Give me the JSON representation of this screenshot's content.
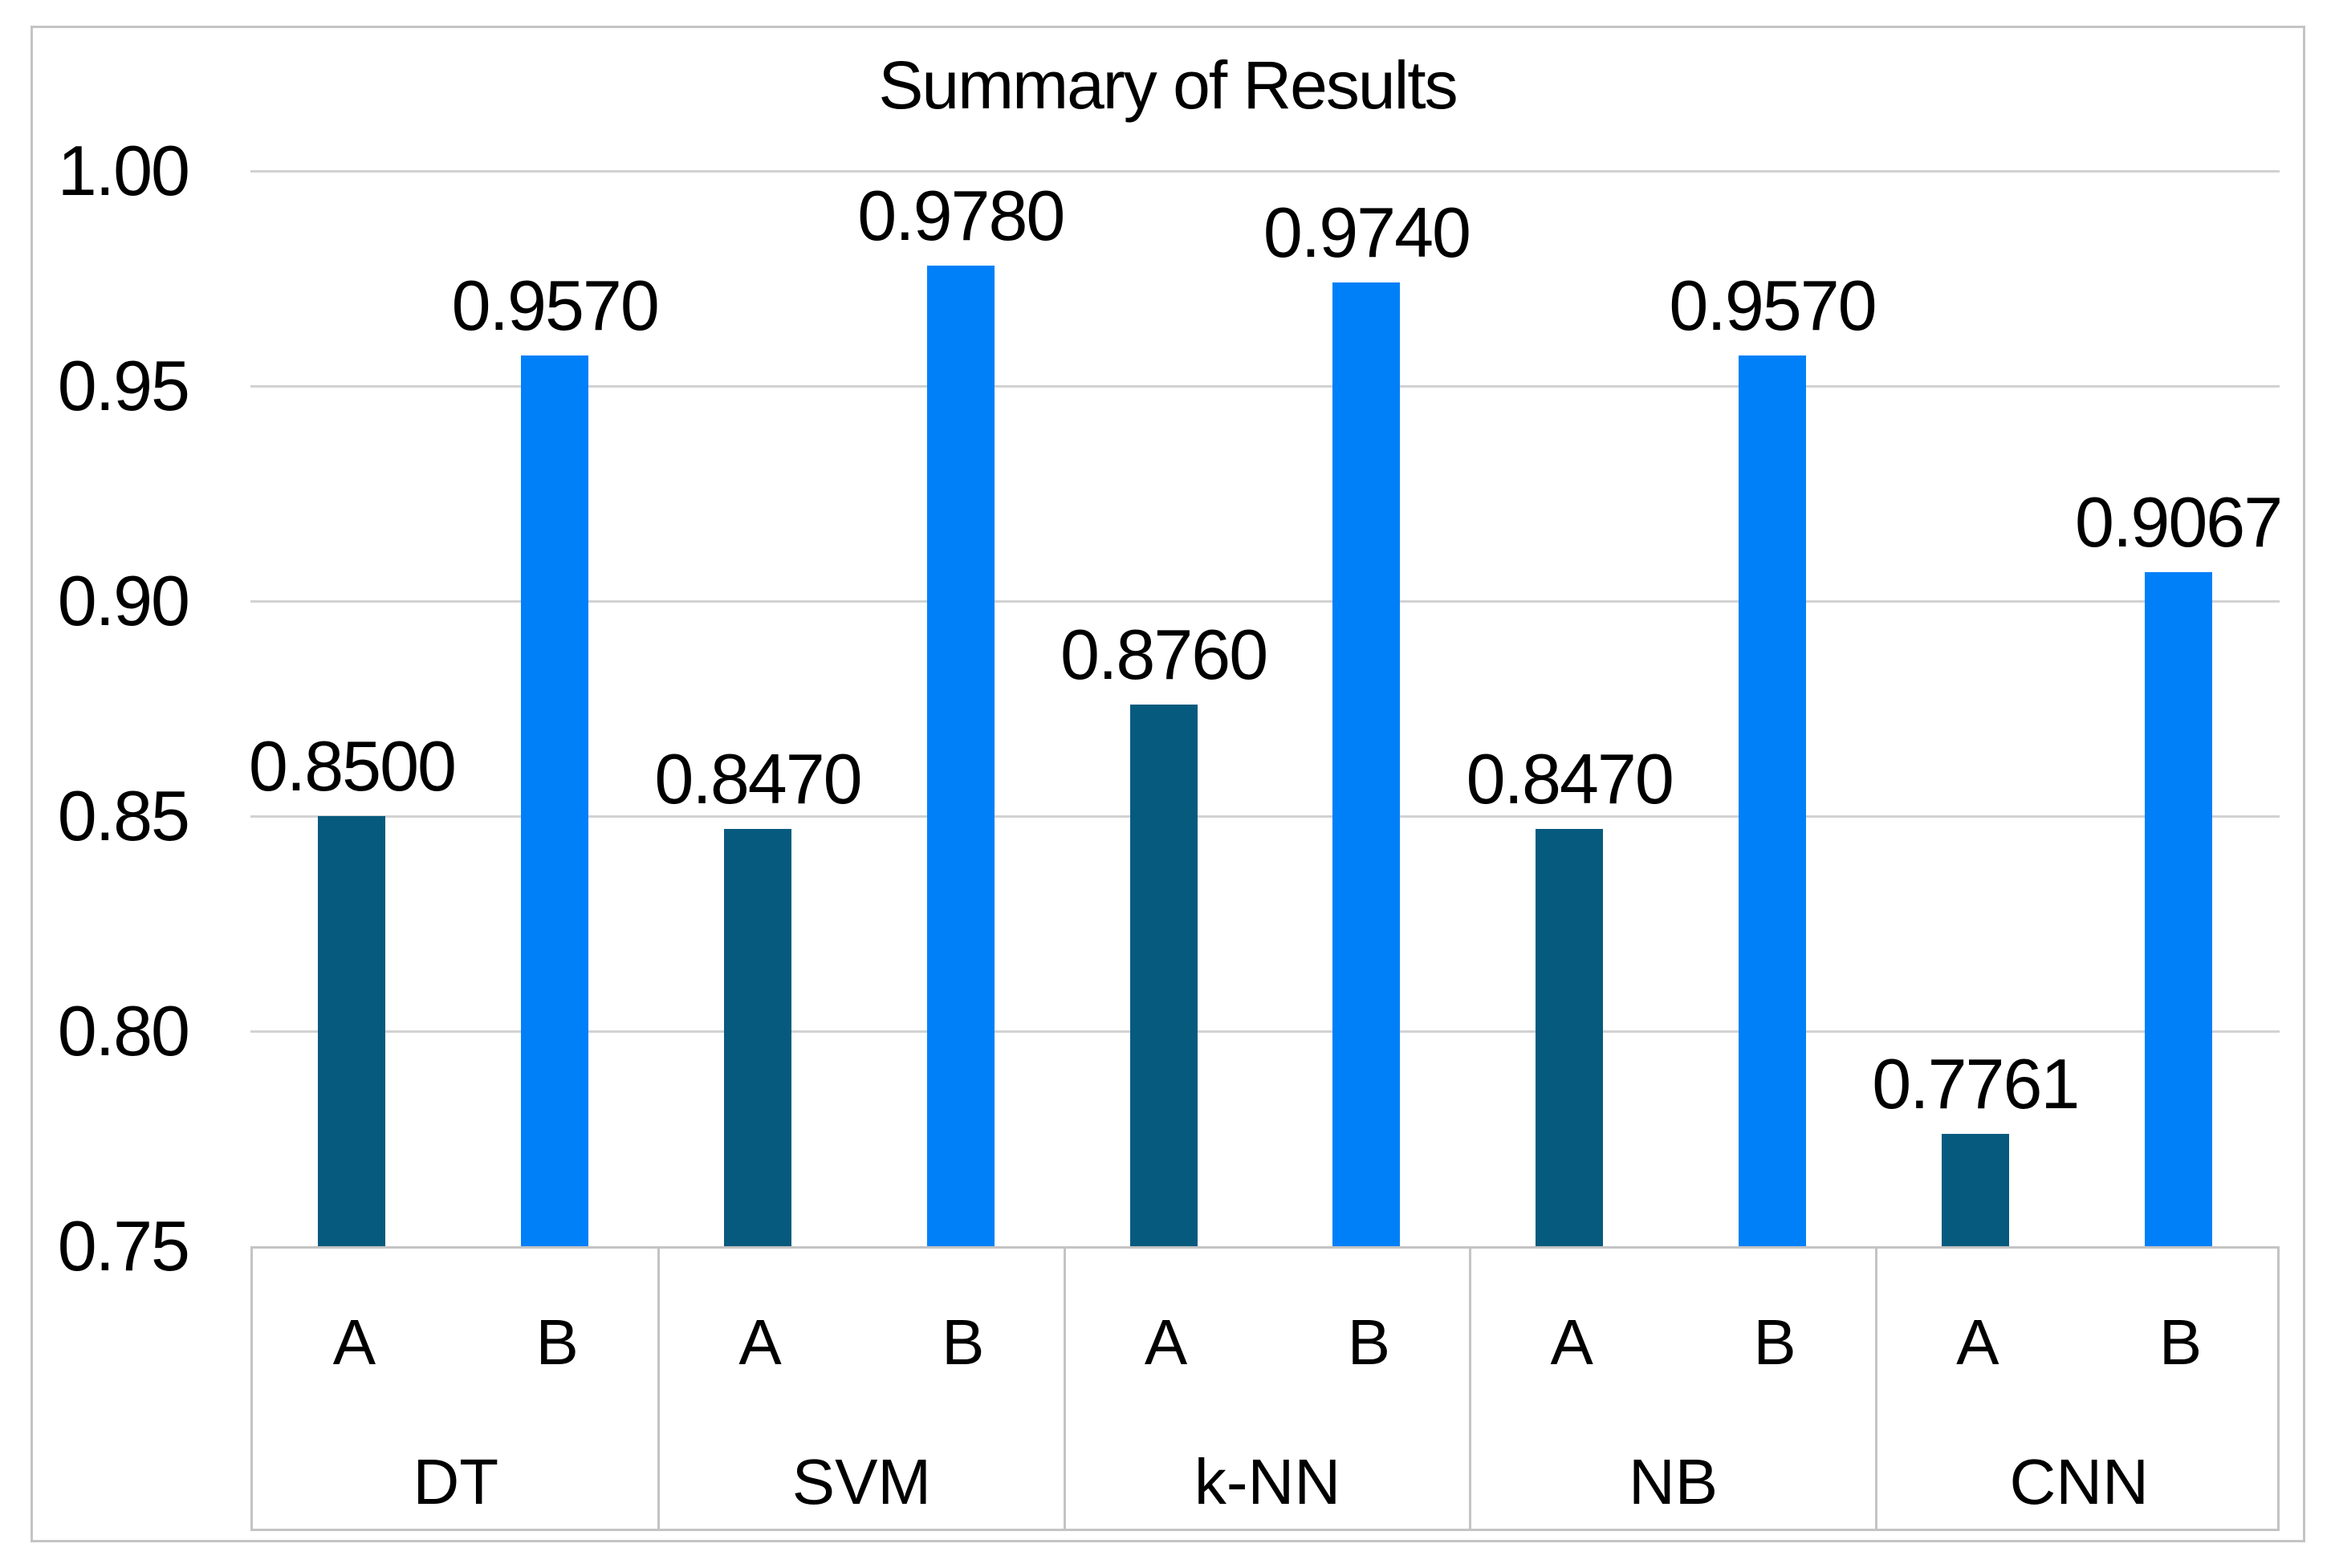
{
  "chart_data": {
    "type": "bar",
    "title": "Summary of Results",
    "categories": [
      "DT",
      "SVM",
      "k-NN",
      "NB",
      "CNN"
    ],
    "sub_categories": [
      "A",
      "B"
    ],
    "series": [
      {
        "name": "A",
        "color": "#065A7E",
        "values": [
          0.85,
          0.847,
          0.876,
          0.847,
          0.7761
        ],
        "data_labels": [
          "0.8500",
          "0.8470",
          "0.8760",
          "0.8470",
          "0.7761"
        ]
      },
      {
        "name": "B",
        "color": "#0080F8",
        "values": [
          0.957,
          0.978,
          0.974,
          0.957,
          0.9067
        ],
        "data_labels": [
          "0.9570",
          "0.9780",
          "0.9740",
          "0.9570",
          "0.9067"
        ]
      }
    ],
    "ylim": [
      0.75,
      1.0
    ],
    "y_ticks": [
      1.0,
      0.95,
      0.9,
      0.85,
      0.8,
      0.75
    ],
    "y_tick_labels": [
      "1.00",
      "0.95",
      "0.90",
      "0.85",
      "0.80",
      "0.75"
    ],
    "xlabel": "",
    "ylabel": "",
    "grid": "horizontal",
    "legend": "none",
    "colors": {
      "series_a": "#065A7E",
      "series_b": "#0080F8",
      "gridline": "#D2D2D2",
      "border": "#C4C4C4",
      "text": "#000000",
      "background": "#FFFFFF"
    }
  }
}
